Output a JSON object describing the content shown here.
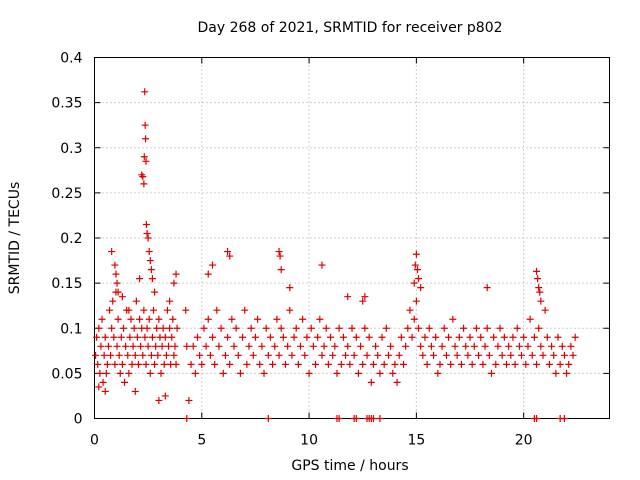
{
  "chart_data": {
    "type": "scatter",
    "title": "Day 268 of 2021, SRMTID for receiver p802",
    "xlabel": "GPS time / hours",
    "ylabel": "SRMTID / TECUs",
    "xlim": [
      0,
      24
    ],
    "ylim": [
      0,
      0.4
    ],
    "xticks": [
      0,
      5,
      10,
      15,
      20
    ],
    "yticks": [
      0,
      0.05,
      0.1,
      0.15,
      0.2,
      0.25,
      0.3,
      0.35,
      0.4
    ],
    "xtick_labels": [
      "0",
      "5",
      "10",
      "15",
      "20"
    ],
    "ytick_labels": [
      "0",
      "0.05",
      "0.1",
      "0.15",
      "0.2",
      "0.25",
      "0.3",
      "0.35",
      "0.4"
    ],
    "grid": true,
    "marker": "+",
    "color": "#dd0000",
    "series": [
      {
        "name": "SRMTID",
        "x": [
          0.05,
          0.1,
          0.15,
          0.2,
          0.25,
          0.3,
          0.35,
          0.4,
          0.45,
          0.5,
          0.55,
          0.6,
          0.65,
          0.7,
          0.75,
          0.8,
          0.85,
          0.9,
          0.95,
          1.0,
          1.05,
          1.1,
          1.15,
          1.2,
          1.25,
          1.3,
          1.35,
          1.4,
          1.45,
          1.5,
          1.55,
          1.6,
          1.65,
          1.7,
          1.75,
          1.8,
          1.85,
          1.9,
          1.95,
          2.0,
          2.05,
          2.1,
          2.15,
          2.2,
          2.25,
          2.3,
          2.35,
          2.4,
          2.45,
          2.5,
          2.55,
          2.6,
          2.65,
          2.7,
          2.75,
          2.8,
          2.85,
          2.9,
          2.95,
          3.0,
          3.05,
          3.1,
          3.15,
          3.2,
          3.25,
          3.3,
          3.35,
          3.4,
          3.45,
          3.5,
          3.55,
          3.6,
          3.65,
          3.7,
          3.75,
          3.8,
          3.85,
          0.2,
          0.5,
          0.8,
          0.95,
          1.0,
          1.05,
          1.1,
          1.3,
          1.6,
          1.9,
          2.1,
          2.2,
          2.25,
          2.3,
          2.32,
          2.34,
          2.36,
          2.38,
          2.4,
          2.42,
          2.45,
          2.5,
          2.55,
          2.6,
          2.65,
          2.7,
          2.8,
          3.0,
          3.3,
          3.5,
          3.7,
          3.8,
          4.25,
          4.3,
          4.4,
          4.5,
          4.6,
          4.7,
          4.8,
          4.9,
          5.0,
          5.1,
          5.2,
          5.3,
          5.4,
          5.5,
          5.6,
          5.7,
          5.8,
          5.9,
          6.0,
          6.1,
          6.2,
          6.3,
          6.4,
          6.5,
          6.6,
          6.7,
          6.8,
          6.9,
          7.0,
          7.1,
          7.2,
          7.3,
          7.4,
          7.5,
          7.6,
          7.7,
          7.8,
          7.9,
          8.0,
          8.1,
          8.2,
          8.3,
          8.4,
          8.5,
          8.6,
          8.7,
          8.8,
          8.9,
          9.0,
          9.1,
          9.2,
          9.3,
          9.4,
          9.5,
          9.6,
          9.7,
          9.8,
          9.9,
          10.0,
          10.1,
          10.2,
          10.3,
          10.4,
          10.5,
          10.6,
          10.7,
          10.8,
          10.9,
          11.0,
          11.1,
          11.2,
          11.3,
          11.4,
          11.5,
          11.6,
          11.7,
          11.8,
          11.9,
          12.0,
          12.1,
          12.2,
          12.3,
          12.4,
          12.5,
          12.6,
          12.7,
          12.8,
          12.9,
          13.0,
          13.1,
          13.2,
          13.3,
          13.4,
          13.5,
          13.6,
          13.7,
          13.8,
          13.9,
          14.0,
          14.1,
          14.2,
          14.3,
          14.4,
          14.5,
          14.6,
          14.7,
          14.8,
          14.9,
          15.0,
          15.1,
          15.2,
          15.3,
          15.4,
          15.5,
          15.6,
          15.7,
          15.8,
          15.9,
          16.0,
          16.1,
          16.2,
          16.3,
          16.4,
          16.5,
          16.6,
          16.7,
          16.8,
          16.9,
          17.0,
          17.1,
          17.2,
          17.3,
          17.4,
          17.5,
          17.6,
          17.7,
          17.8,
          17.9,
          18.0,
          18.1,
          18.2,
          18.3,
          18.4,
          18.5,
          18.6,
          18.7,
          18.8,
          18.9,
          19.0,
          19.1,
          19.2,
          19.3,
          19.4,
          19.5,
          19.6,
          19.7,
          19.8,
          19.9,
          20.0,
          20.1,
          20.2,
          20.3,
          20.4,
          20.5,
          20.6,
          20.7,
          20.8,
          20.9,
          21.0,
          21.1,
          21.2,
          21.3,
          21.4,
          21.5,
          21.6,
          21.7,
          21.8,
          21.9,
          22.0,
          22.1,
          22.2,
          22.3,
          22.4,
          5.3,
          5.5,
          6.2,
          6.3,
          8.6,
          8.65,
          8.7,
          9.1,
          10.6,
          11.8,
          12.5,
          12.6,
          14.9,
          14.95,
          15.0,
          15.05,
          15.1,
          15.2,
          18.3,
          20.6,
          20.65,
          20.7,
          20.75,
          20.8,
          4.3,
          8.1,
          11.3,
          11.4,
          12.1,
          12.2,
          12.7,
          12.8,
          12.9,
          13.0,
          13.3,
          20.5,
          20.6,
          21.7,
          21.9
        ],
        "y": [
          0.07,
          0.09,
          0.06,
          0.1,
          0.05,
          0.08,
          0.11,
          0.04,
          0.07,
          0.09,
          0.05,
          0.06,
          0.08,
          0.12,
          0.07,
          0.1,
          0.13,
          0.09,
          0.06,
          0.14,
          0.08,
          0.11,
          0.07,
          0.05,
          0.09,
          0.06,
          0.1,
          0.04,
          0.08,
          0.12,
          0.07,
          0.05,
          0.09,
          0.11,
          0.06,
          0.08,
          0.1,
          0.07,
          0.13,
          0.09,
          0.06,
          0.11,
          0.08,
          0.1,
          0.07,
          0.12,
          0.09,
          0.06,
          0.1,
          0.08,
          0.11,
          0.05,
          0.07,
          0.09,
          0.12,
          0.06,
          0.08,
          0.1,
          0.07,
          0.11,
          0.09,
          0.05,
          0.08,
          0.1,
          0.06,
          0.09,
          0.07,
          0.12,
          0.08,
          0.1,
          0.06,
          0.09,
          0.11,
          0.07,
          0.08,
          0.06,
          0.1,
          0.035,
          0.03,
          0.185,
          0.17,
          0.16,
          0.15,
          0.14,
          0.135,
          0.12,
          0.03,
          0.155,
          0.27,
          0.268,
          0.26,
          0.29,
          0.362,
          0.325,
          0.31,
          0.285,
          0.215,
          0.205,
          0.2,
          0.185,
          0.175,
          0.165,
          0.155,
          0.14,
          0.02,
          0.025,
          0.13,
          0.15,
          0.16,
          0.12,
          0.08,
          0.02,
          0.06,
          0.08,
          0.05,
          0.09,
          0.07,
          0.06,
          0.1,
          0.08,
          0.11,
          0.07,
          0.09,
          0.06,
          0.12,
          0.08,
          0.1,
          0.05,
          0.07,
          0.09,
          0.06,
          0.11,
          0.08,
          0.1,
          0.07,
          0.05,
          0.09,
          0.12,
          0.06,
          0.08,
          0.1,
          0.07,
          0.09,
          0.11,
          0.06,
          0.08,
          0.05,
          0.1,
          0.07,
          0.09,
          0.06,
          0.08,
          0.11,
          0.07,
          0.1,
          0.09,
          0.06,
          0.08,
          0.12,
          0.07,
          0.09,
          0.1,
          0.06,
          0.08,
          0.11,
          0.07,
          0.09,
          0.05,
          0.1,
          0.08,
          0.06,
          0.09,
          0.11,
          0.07,
          0.08,
          0.1,
          0.06,
          0.09,
          0.07,
          0.08,
          0.05,
          0.1,
          0.06,
          0.09,
          0.07,
          0.08,
          0.06,
          0.1,
          0.07,
          0.09,
          0.05,
          0.08,
          0.06,
          0.1,
          0.07,
          0.09,
          0.04,
          0.06,
          0.08,
          0.07,
          0.05,
          0.09,
          0.06,
          0.1,
          0.07,
          0.08,
          0.05,
          0.06,
          0.04,
          0.07,
          0.09,
          0.06,
          0.08,
          0.1,
          0.12,
          0.09,
          0.11,
          0.13,
          0.1,
          0.08,
          0.07,
          0.09,
          0.06,
          0.1,
          0.08,
          0.07,
          0.09,
          0.05,
          0.06,
          0.08,
          0.1,
          0.07,
          0.09,
          0.06,
          0.11,
          0.08,
          0.07,
          0.09,
          0.06,
          0.1,
          0.08,
          0.07,
          0.09,
          0.06,
          0.08,
          0.1,
          0.07,
          0.09,
          0.06,
          0.08,
          0.1,
          0.07,
          0.05,
          0.09,
          0.06,
          0.08,
          0.1,
          0.07,
          0.09,
          0.06,
          0.08,
          0.07,
          0.09,
          0.06,
          0.1,
          0.08,
          0.07,
          0.09,
          0.06,
          0.08,
          0.11,
          0.07,
          0.09,
          0.06,
          0.1,
          0.08,
          0.07,
          0.12,
          0.09,
          0.06,
          0.08,
          0.07,
          0.05,
          0.09,
          0.06,
          0.08,
          0.07,
          0.05,
          0.06,
          0.08,
          0.07,
          0.09,
          0.16,
          0.17,
          0.185,
          0.18,
          0.185,
          0.18,
          0.165,
          0.145,
          0.17,
          0.135,
          0.13,
          0.135,
          0.15,
          0.17,
          0.182,
          0.165,
          0.155,
          0.145,
          0.145,
          0.163,
          0.155,
          0.145,
          0.14,
          0.13,
          0.0,
          0.0,
          0.0,
          0.0,
          0.0,
          0.0,
          0.0,
          0.0,
          0.0,
          0.0,
          0.0,
          0.0,
          0.0,
          0.0,
          0.0
        ]
      }
    ]
  }
}
